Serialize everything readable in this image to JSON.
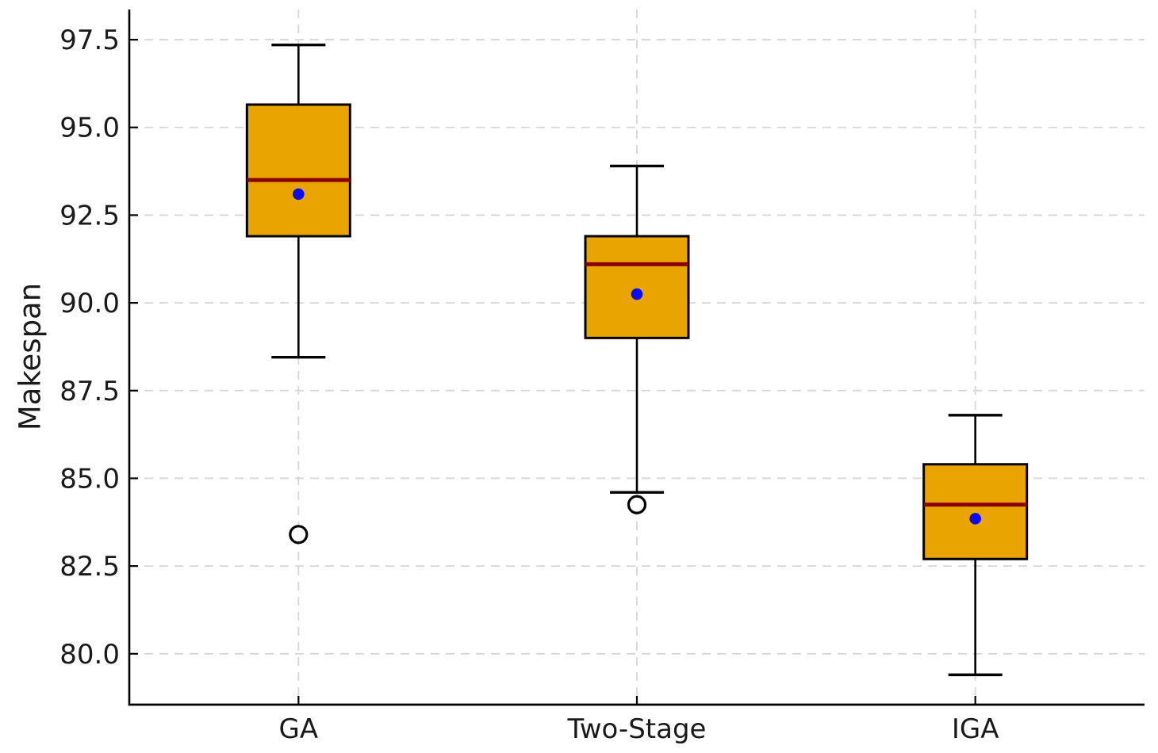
{
  "chart_data": {
    "type": "boxplot",
    "ylabel": "Makespan",
    "categories": [
      "GA",
      "Two-Stage",
      "IGA"
    ],
    "yticks": [
      80.0,
      82.5,
      85.0,
      87.5,
      90.0,
      92.5,
      95.0,
      97.5
    ],
    "ytick_labels": [
      "80.0",
      "82.5",
      "85.0",
      "87.5",
      "90.0",
      "92.5",
      "95.0",
      "97.5"
    ],
    "ylim": [
      78.55,
      98.36
    ],
    "grid": "dashed horizontal and vertical, light gray",
    "series": [
      {
        "name": "GA",
        "whisker_low": 88.45,
        "q1": 91.9,
        "median": 93.5,
        "q3": 95.65,
        "whisker_high": 97.35,
        "mean": 93.1,
        "outliers": [
          83.4
        ]
      },
      {
        "name": "Two-Stage",
        "whisker_low": 84.6,
        "q1": 89.0,
        "median": 91.1,
        "q3": 91.9,
        "whisker_high": 93.9,
        "mean": 90.25,
        "outliers": [
          84.25
        ]
      },
      {
        "name": "IGA",
        "whisker_low": 79.4,
        "q1": 82.7,
        "median": 84.25,
        "q3": 85.4,
        "whisker_high": 86.8,
        "mean": 83.85,
        "outliers": []
      }
    ],
    "colors": {
      "box_fill": "#E9A402",
      "box_edge": "#000000",
      "median": "#8B0000",
      "mean_dot": "#0B0BEB",
      "whisker": "#000000",
      "outlier_edge": "#000000",
      "outlier_fill": "#ffffff",
      "grid": "#D6D6D6",
      "spine": "#000000",
      "tick_label": "#1A1A1A",
      "background": "#FFFFFF"
    }
  }
}
